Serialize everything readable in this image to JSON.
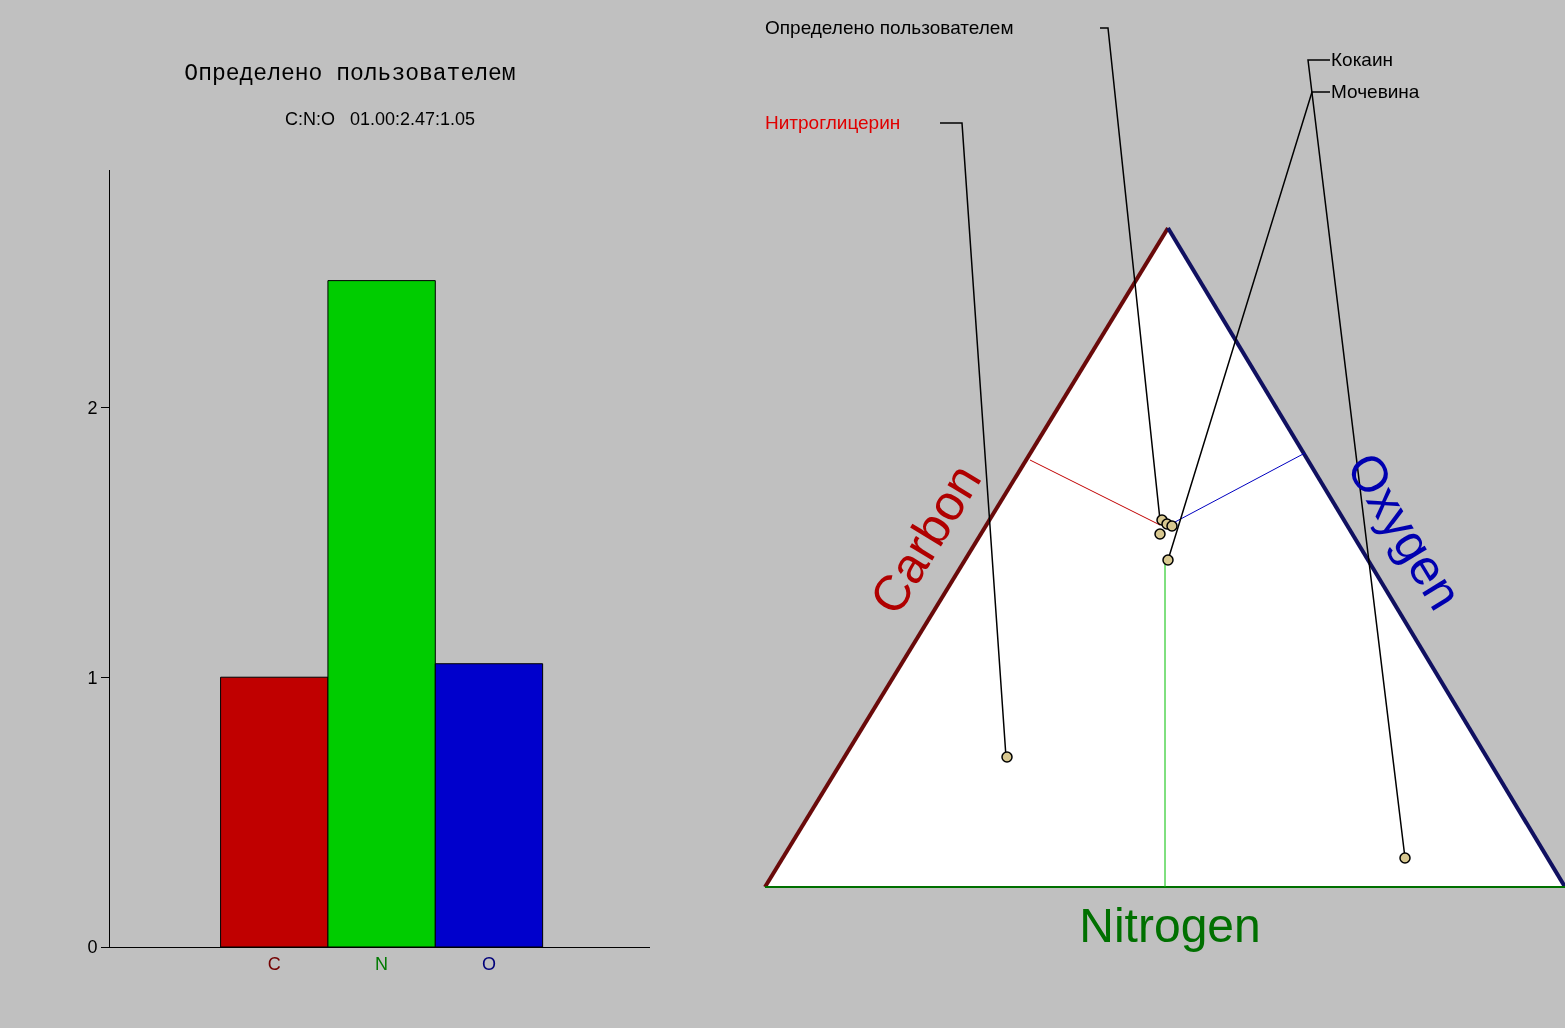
{
  "chart_data": [
    {
      "type": "bar",
      "title": "Определено пользователем",
      "subtitle": "C:N:O   01.00:2.47:1.05",
      "categories": [
        "C",
        "N",
        "O"
      ],
      "values": [
        1.0,
        2.47,
        1.05
      ],
      "colors": [
        "#c00000",
        "#00cc00",
        "#0000cc"
      ],
      "ylim": [
        0,
        2.88
      ],
      "yticks": [
        0,
        1,
        2
      ]
    },
    {
      "type": "other",
      "xlabel": "Nitrogen",
      "annotations": [
        "Carbon",
        "Oxygen",
        "Определено пользователем",
        "Нитроглицерин",
        "Кокаин",
        "Мочевина"
      ]
    }
  ]
}
